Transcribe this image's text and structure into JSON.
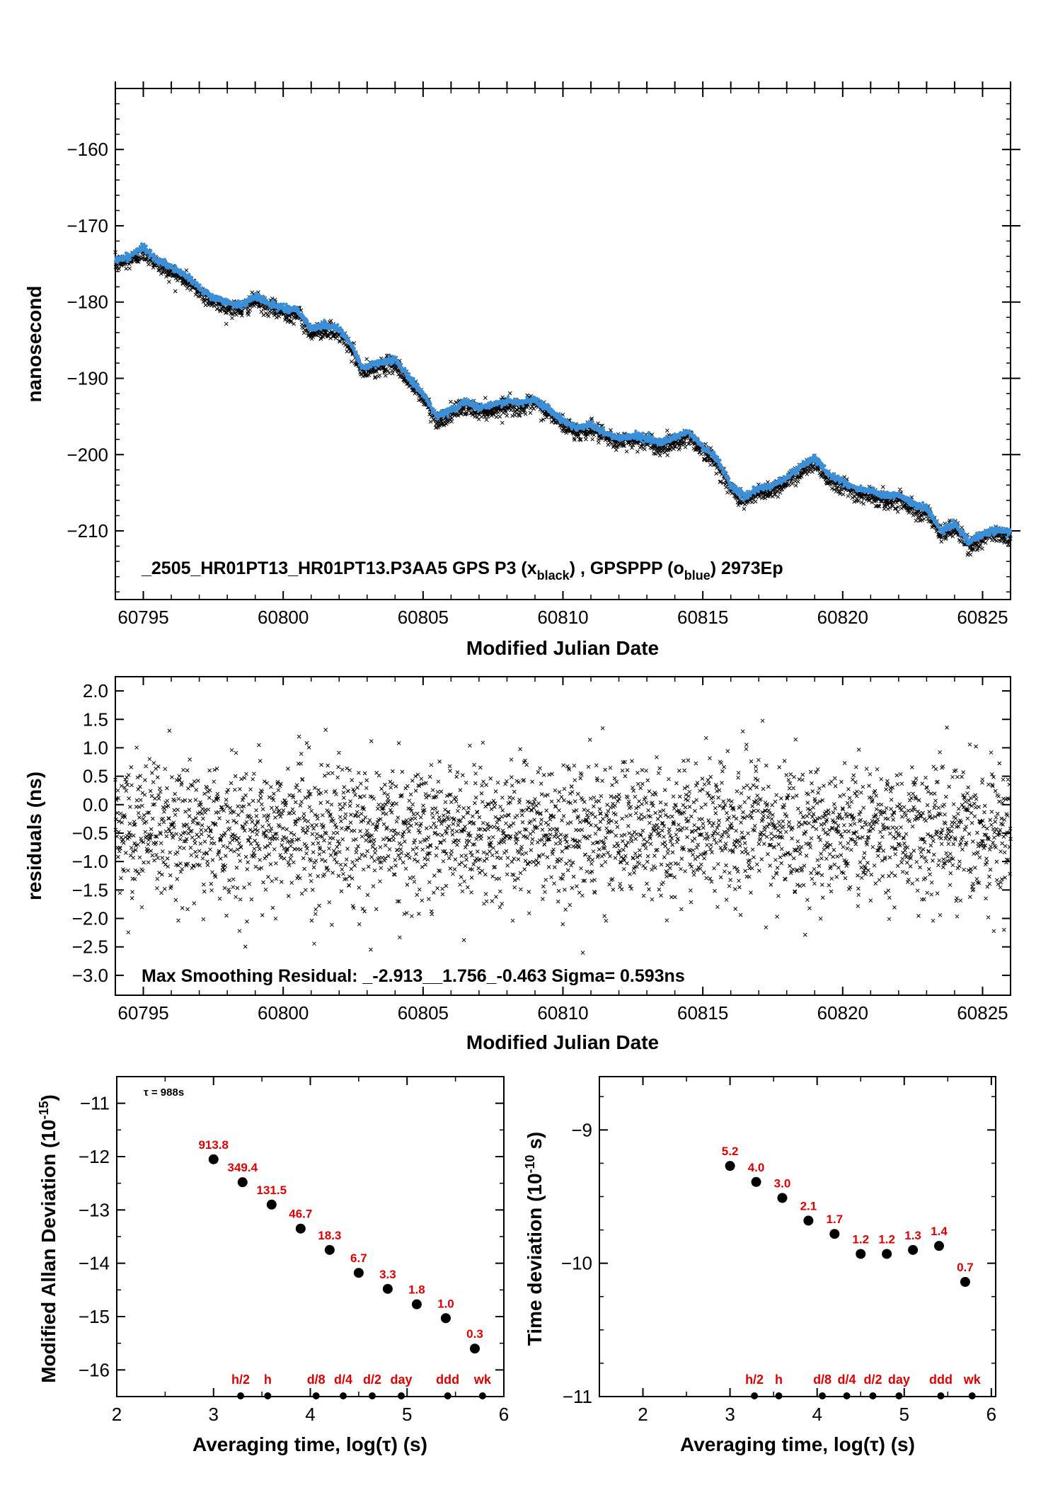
{
  "colors": {
    "black_series": "#000000",
    "blue_series": "#3a8fd8",
    "label_red": "#e00000"
  },
  "panel1": {
    "caption_main": "_2505_HR01PT13_HR01PT13.P3AA5    GPS P3 (x",
    "caption_sub1": "black",
    "caption_mid": ") ,  GPSPPP (o",
    "caption_sub2": "blue",
    "caption_end": ")  2973Ep",
    "xlabel": "Modified Julian Date",
    "ylabel": "nanosecond"
  },
  "panel2": {
    "note": "Max Smoothing Residual: _-2.913__1.756_-0.463  Sigma= 0.593ns",
    "xlabel": "Modified Julian Date",
    "ylabel": "residuals (ns)"
  },
  "panel3": {
    "tau_note": "τ = 988s",
    "xlabel": "Averaging time, log(τ) (s)",
    "ylabel_main": "Modified Allan Deviation (10",
    "ylabel_sup": "-15",
    "ylabel_end": ")"
  },
  "panel4": {
    "xlabel": "Averaging time, log(τ) (s)",
    "ylabel_main": "Time deviation (10",
    "ylabel_sup": "-10",
    "ylabel_end": " s)"
  },
  "chart_data": [
    {
      "type": "scatter",
      "title": "_2505_HR01PT13_HR01PT13.P3AA5 GPS P3 (xblack) , GPSPPP (oblue) 2973Ep",
      "xlabel": "Modified Julian Date",
      "ylabel": "nanosecond",
      "xlim": [
        60794,
        60826
      ],
      "ylim": [
        -219,
        -152
      ],
      "xticks": [
        60795,
        60800,
        60805,
        60810,
        60815,
        60820,
        60825
      ],
      "yticks": [
        -160,
        -170,
        -180,
        -190,
        -200,
        -210
      ],
      "grid": false,
      "series": [
        {
          "name": "GPSPPP (o blue)",
          "x": [
            60794.0,
            60794.5,
            60795.0,
            60795.5,
            60796.0,
            60796.5,
            60797.0,
            60797.5,
            60798.0,
            60798.5,
            60799.0,
            60799.5,
            60800.0,
            60800.5,
            60801.0,
            60801.5,
            60802.0,
            60802.5,
            60802.8,
            60803.0,
            60803.5,
            60804.0,
            60804.5,
            60805.0,
            60805.5,
            60806.0,
            60806.5,
            60807.0,
            60807.5,
            60808.0,
            60808.5,
            60809.0,
            60809.5,
            60810.0,
            60810.5,
            60811.0,
            60811.5,
            60812.0,
            60812.5,
            60813.0,
            60813.5,
            60814.0,
            60814.5,
            60815.0,
            60815.5,
            60816.0,
            60816.5,
            60817.0,
            60817.5,
            60818.0,
            60818.5,
            60819.0,
            60819.5,
            60820.0,
            60820.5,
            60821.0,
            60821.5,
            60822.0,
            60822.5,
            60823.0,
            60823.5,
            60824.0,
            60824.5,
            60825.0,
            60825.5,
            60826.0
          ],
          "y": [
            -174.5,
            -174.0,
            -172.8,
            -174.5,
            -175.5,
            -176.5,
            -178.0,
            -179.5,
            -180.0,
            -180.5,
            -179.2,
            -180.2,
            -180.8,
            -181.0,
            -183.5,
            -183.0,
            -183.5,
            -186.0,
            -188.5,
            -188.5,
            -187.8,
            -187.5,
            -190.0,
            -192.0,
            -195.0,
            -194.2,
            -193.0,
            -193.8,
            -193.5,
            -193.0,
            -193.2,
            -192.8,
            -194.0,
            -195.5,
            -196.5,
            -196.0,
            -197.2,
            -197.8,
            -197.5,
            -197.8,
            -198.5,
            -197.8,
            -197.0,
            -199.0,
            -200.5,
            -204.0,
            -205.5,
            -204.5,
            -204.0,
            -203.0,
            -201.5,
            -200.5,
            -202.5,
            -203.5,
            -204.5,
            -204.8,
            -205.5,
            -205.2,
            -206.5,
            -207.0,
            -210.0,
            -209.0,
            -211.5,
            -210.5,
            -209.8,
            -210.2
          ]
        },
        {
          "name": "GPS P3 (x black)",
          "x": [
            60794.0,
            60794.5,
            60795.0,
            60795.5,
            60796.0,
            60796.5,
            60797.0,
            60797.5,
            60798.0,
            60798.5,
            60799.0,
            60799.5,
            60800.0,
            60800.5,
            60801.0,
            60801.5,
            60802.0,
            60802.5,
            60802.8,
            60803.0,
            60803.5,
            60804.0,
            60804.5,
            60805.0,
            60805.5,
            60806.0,
            60806.5,
            60807.0,
            60807.5,
            60808.0,
            60808.5,
            60809.0,
            60809.5,
            60810.0,
            60810.5,
            60811.0,
            60811.5,
            60812.0,
            60812.5,
            60813.0,
            60813.5,
            60814.0,
            60814.5,
            60815.0,
            60815.5,
            60816.0,
            60816.5,
            60817.0,
            60817.5,
            60818.0,
            60818.5,
            60819.0,
            60819.5,
            60820.0,
            60820.5,
            60821.0,
            60821.5,
            60822.0,
            60822.5,
            60823.0,
            60823.5,
            60824.0,
            60824.5,
            60825.0,
            60825.5,
            60826.0
          ],
          "y": [
            -175.0,
            -174.6,
            -173.4,
            -175.0,
            -176.1,
            -177.0,
            -178.6,
            -180.0,
            -180.6,
            -181.0,
            -179.8,
            -180.7,
            -181.4,
            -181.5,
            -184.1,
            -183.5,
            -184.1,
            -186.5,
            -189.1,
            -189.0,
            -188.4,
            -188.0,
            -190.6,
            -192.5,
            -195.6,
            -194.7,
            -193.6,
            -194.3,
            -194.1,
            -193.5,
            -193.8,
            -193.3,
            -194.6,
            -196.0,
            -197.1,
            -196.5,
            -197.8,
            -198.3,
            -198.1,
            -198.3,
            -199.1,
            -198.3,
            -197.6,
            -199.5,
            -201.1,
            -204.5,
            -206.1,
            -205.0,
            -204.6,
            -203.5,
            -202.1,
            -201.0,
            -203.1,
            -204.0,
            -205.1,
            -205.3,
            -206.1,
            -205.7,
            -207.1,
            -207.5,
            -210.6,
            -209.5,
            -212.1,
            -211.0,
            -210.4,
            -210.7
          ]
        }
      ]
    },
    {
      "type": "scatter",
      "xlabel": "Modified Julian Date",
      "ylabel": "residuals (ns)",
      "xlim": [
        60794,
        60826
      ],
      "ylim": [
        -3.35,
        2.25
      ],
      "xticks": [
        60795,
        60800,
        60805,
        60810,
        60815,
        60820,
        60825
      ],
      "yticks": [
        2.0,
        1.5,
        1.0,
        0.5,
        0.0,
        -0.5,
        -1.0,
        -1.5,
        -2.0,
        -2.5,
        -3.0
      ],
      "residual_stats": {
        "min": -2.913,
        "max": 1.756,
        "mean": -0.463,
        "sigma": 0.593,
        "unit": "ns"
      },
      "grid": false
    },
    {
      "type": "scatter",
      "xlabel": "Averaging time, log(τ) (s)",
      "ylabel": "Modified Allan Deviation (10^-15)",
      "xlim": [
        2,
        6
      ],
      "ylim": [
        -16.5,
        -10.5
      ],
      "xticks": [
        2,
        3,
        4,
        5,
        6
      ],
      "yticks": [
        -11,
        -12,
        -13,
        -14,
        -15,
        -16
      ],
      "points": [
        {
          "x": 3.0,
          "y": -12.05,
          "label": "913.8"
        },
        {
          "x": 3.3,
          "y": -12.48,
          "label": "349.4"
        },
        {
          "x": 3.6,
          "y": -12.9,
          "label": "131.5"
        },
        {
          "x": 3.9,
          "y": -13.35,
          "label": "46.7"
        },
        {
          "x": 4.2,
          "y": -13.75,
          "label": "18.3"
        },
        {
          "x": 4.5,
          "y": -14.18,
          "label": "6.7"
        },
        {
          "x": 4.8,
          "y": -14.48,
          "label": "3.3"
        },
        {
          "x": 5.1,
          "y": -14.77,
          "label": "1.8"
        },
        {
          "x": 5.4,
          "y": -15.03,
          "label": "1.0"
        },
        {
          "x": 5.7,
          "y": -15.6,
          "label": "0.3"
        }
      ],
      "interval_markers": [
        {
          "x": 3.28,
          "label": "h/2"
        },
        {
          "x": 3.56,
          "label": "h"
        },
        {
          "x": 4.06,
          "label": "d/8"
        },
        {
          "x": 4.34,
          "label": "d/4"
        },
        {
          "x": 4.64,
          "label": "d/2"
        },
        {
          "x": 4.94,
          "label": "day"
        },
        {
          "x": 5.42,
          "label": "ddd"
        },
        {
          "x": 5.78,
          "label": "wk"
        }
      ]
    },
    {
      "type": "scatter",
      "xlabel": "Averaging time, log(τ) (s)",
      "ylabel": "Time deviation (10^-10 s)",
      "xlim": [
        1.5,
        6.05
      ],
      "ylim": [
        -11,
        -8.6
      ],
      "xticks": [
        2,
        3,
        4,
        5,
        6
      ],
      "yticks": [
        -9,
        -10,
        -11
      ],
      "points": [
        {
          "x": 3.0,
          "y": -9.27,
          "label": "5.2"
        },
        {
          "x": 3.3,
          "y": -9.39,
          "label": "4.0"
        },
        {
          "x": 3.6,
          "y": -9.51,
          "label": "3.0"
        },
        {
          "x": 3.9,
          "y": -9.68,
          "label": "2.1"
        },
        {
          "x": 4.2,
          "y": -9.78,
          "label": "1.7"
        },
        {
          "x": 4.5,
          "y": -9.93,
          "label": "1.2"
        },
        {
          "x": 4.8,
          "y": -9.93,
          "label": "1.2"
        },
        {
          "x": 5.1,
          "y": -9.9,
          "label": "1.3"
        },
        {
          "x": 5.4,
          "y": -9.87,
          "label": "1.4"
        },
        {
          "x": 5.7,
          "y": -10.14,
          "label": "0.7"
        }
      ],
      "interval_markers": [
        {
          "x": 3.28,
          "label": "h/2"
        },
        {
          "x": 3.56,
          "label": "h"
        },
        {
          "x": 4.06,
          "label": "d/8"
        },
        {
          "x": 4.34,
          "label": "d/4"
        },
        {
          "x": 4.64,
          "label": "d/2"
        },
        {
          "x": 4.94,
          "label": "day"
        },
        {
          "x": 5.42,
          "label": "ddd"
        },
        {
          "x": 5.78,
          "label": "wk"
        }
      ]
    }
  ]
}
